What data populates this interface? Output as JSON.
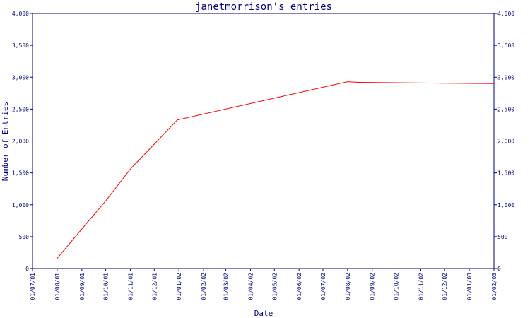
{
  "chart_data": {
    "type": "line",
    "title": "janetmorrison's entries",
    "xlabel": "Date",
    "ylabel": "Number of Entries",
    "x_ticks": [
      "01/07/01",
      "01/08/01",
      "01/09/01",
      "01/10/01",
      "01/11/01",
      "01/12/01",
      "01/01/02",
      "01/02/02",
      "01/03/02",
      "01/04/02",
      "01/05/02",
      "01/06/02",
      "01/07/02",
      "01/08/02",
      "01/09/02",
      "01/10/02",
      "01/11/02",
      "01/12/02",
      "01/01/03",
      "01/02/03"
    ],
    "y_ticks": [
      "0",
      "500",
      "1,000",
      "1,500",
      "2,000",
      "2,500",
      "3,000",
      "3,500",
      "4,000"
    ],
    "y_tick_values": [
      0,
      500,
      1000,
      1500,
      2000,
      2500,
      3000,
      3500,
      4000
    ],
    "ylim": [
      0,
      4000
    ],
    "xlim": [
      "2001-07-01",
      "2003-02-01"
    ],
    "grid": false,
    "series": [
      {
        "color": "#ff0000",
        "x": [
          "2001-08-01",
          "2001-09-01",
          "2001-10-01",
          "2001-11-01",
          "2001-12-01",
          "2001-12-30",
          "2002-08-01",
          "2002-08-15",
          "2002-11-01",
          "2003-02-01"
        ],
        "y": [
          160,
          620,
          1060,
          1560,
          1950,
          2330,
          2930,
          2920,
          2910,
          2900
        ]
      }
    ]
  }
}
